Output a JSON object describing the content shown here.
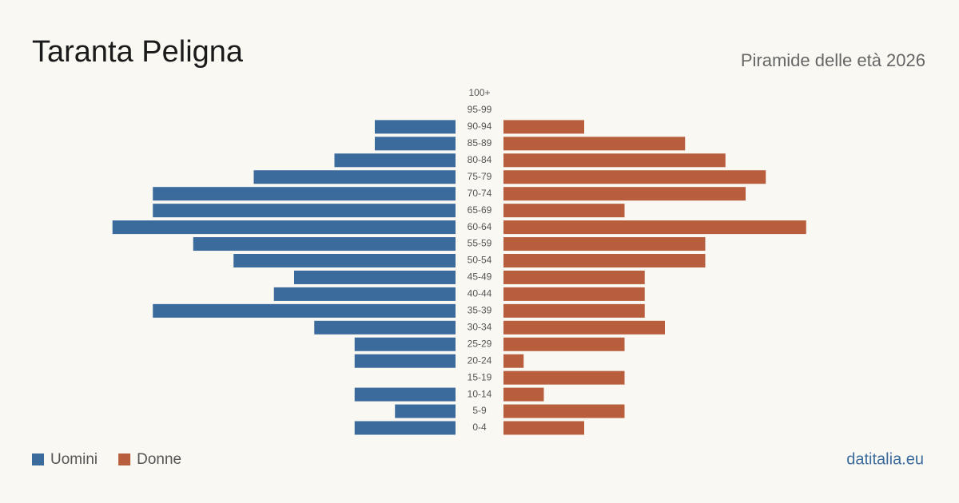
{
  "chart_data": {
    "type": "pyramid",
    "title": "Taranta Peligna",
    "subtitle": "Piramide delle età 2026",
    "source": "datitalia.eu",
    "categories": [
      "100+",
      "95-99",
      "90-94",
      "85-89",
      "80-84",
      "75-79",
      "70-74",
      "65-69",
      "60-64",
      "55-59",
      "50-54",
      "45-49",
      "40-44",
      "35-39",
      "30-34",
      "25-29",
      "20-24",
      "15-19",
      "10-14",
      "5-9",
      "0-4"
    ],
    "series": [
      {
        "name": "Uomini",
        "color": "#3b6a9c",
        "values": [
          0,
          0,
          4,
          4,
          6,
          10,
          15,
          15,
          17,
          13,
          11,
          8,
          9,
          15,
          7,
          5,
          5,
          0,
          5,
          3,
          5
        ]
      },
      {
        "name": "Donne",
        "color": "#b95e3d",
        "values": [
          0,
          0,
          4,
          9,
          11,
          13,
          12,
          6,
          15,
          10,
          10,
          7,
          7,
          7,
          8,
          6,
          1,
          6,
          2,
          6,
          4
        ]
      }
    ]
  }
}
